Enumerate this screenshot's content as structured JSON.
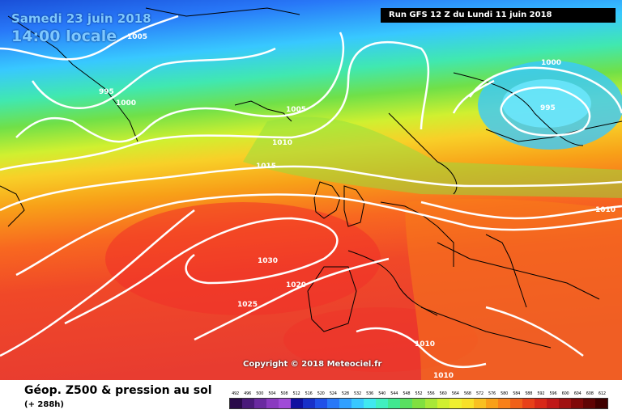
{
  "header": {
    "date": "Samedi 23 juin 2018",
    "time": "14:00 locale",
    "run": "Run GFS 12 Z du Lundi 11 juin 2018"
  },
  "copyright": "Copyright © 2018 Meteociel.fr",
  "legend": {
    "title": "Géop. Z500 & pression au sol",
    "subtitle": "(+ 288h)",
    "scale_values": [
      "492",
      "496",
      "500",
      "504",
      "508",
      "512",
      "516",
      "520",
      "524",
      "528",
      "532",
      "536",
      "540",
      "544",
      "548",
      "552",
      "556",
      "560",
      "564",
      "568",
      "572",
      "576",
      "580",
      "584",
      "588",
      "592",
      "596",
      "600",
      "604",
      "608",
      "612"
    ],
    "scale_colors": [
      "#2a0a4a",
      "#4a1a7a",
      "#6a2aa0",
      "#8a3ac0",
      "#a04ad8",
      "#1010a0",
      "#1830c8",
      "#2050e8",
      "#2878f8",
      "#30a0ff",
      "#38c8ff",
      "#40e8f0",
      "#40f0c0",
      "#40e890",
      "#58e060",
      "#80e040",
      "#a8e838",
      "#d0f030",
      "#f0f030",
      "#f8e028",
      "#f8c020",
      "#f8a018",
      "#f88018",
      "#f06018",
      "#e84018",
      "#d82818",
      "#c01818",
      "#a01010",
      "#800808",
      "#600404",
      "#400000"
    ]
  },
  "isobar_labels": [
    "1005",
    "995",
    "1000",
    "1005",
    "1010",
    "1015",
    "1030",
    "1020",
    "1025",
    "1000",
    "995",
    "1010",
    "1010",
    "1010"
  ]
}
